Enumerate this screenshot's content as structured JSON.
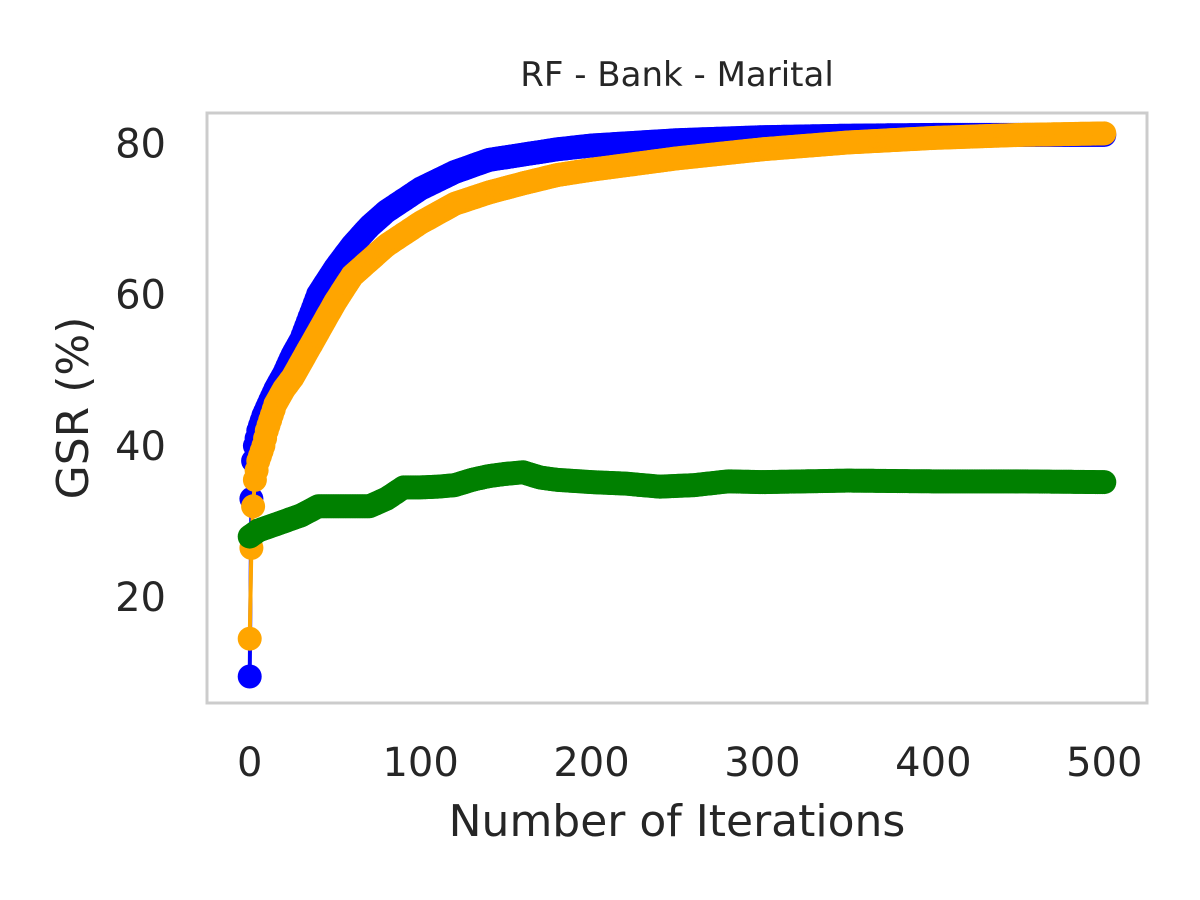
{
  "chart_data": {
    "type": "line",
    "title": "RF - Bank - Marital",
    "xlabel": "Number of Iterations",
    "ylabel": "GSR (%)",
    "xlim": [
      -25,
      525
    ],
    "ylim": [
      6,
      84
    ],
    "xticks": [
      0,
      100,
      200,
      300,
      400,
      500
    ],
    "yticks": [
      20,
      40,
      60,
      80
    ],
    "xtick_labels": [
      "0",
      "100",
      "200",
      "300",
      "400",
      "500"
    ],
    "ytick_labels": [
      "20",
      "40",
      "60",
      "80"
    ],
    "grid": false,
    "series": [
      {
        "name": "blue",
        "color": "#0000ff",
        "x": [
          0,
          1,
          2,
          3,
          5,
          8,
          10,
          15,
          20,
          25,
          30,
          40,
          50,
          60,
          70,
          80,
          90,
          100,
          120,
          140,
          160,
          180,
          200,
          250,
          300,
          350,
          400,
          450,
          500
        ],
        "y": [
          9.5,
          33,
          38,
          40,
          42,
          44,
          45,
          47.5,
          49.5,
          52,
          54,
          60,
          63.5,
          66.5,
          69,
          71,
          72.5,
          74,
          76.2,
          77.8,
          78.5,
          79.2,
          79.7,
          80.4,
          80.8,
          81,
          81.1,
          81.1,
          81.1
        ]
      },
      {
        "name": "orange",
        "color": "#ffa500",
        "x": [
          0,
          1,
          2,
          3,
          5,
          8,
          10,
          15,
          20,
          25,
          30,
          40,
          50,
          60,
          70,
          80,
          90,
          100,
          120,
          140,
          160,
          180,
          200,
          250,
          300,
          350,
          400,
          450,
          500
        ],
        "y": [
          14.5,
          26.5,
          32,
          35.5,
          38,
          40,
          42,
          45.5,
          47.5,
          49,
          51,
          55,
          59,
          62.5,
          64.5,
          66.5,
          68,
          69.5,
          72,
          73.5,
          74.7,
          75.8,
          76.5,
          78,
          79.2,
          80.1,
          80.7,
          81.1,
          81.3
        ]
      },
      {
        "name": "green",
        "color": "#008000",
        "x": [
          0,
          5,
          10,
          20,
          30,
          40,
          50,
          60,
          70,
          80,
          90,
          100,
          110,
          120,
          130,
          140,
          150,
          160,
          170,
          180,
          200,
          220,
          240,
          260,
          280,
          300,
          350,
          400,
          450,
          500
        ],
        "y": [
          28,
          28.8,
          29.2,
          30,
          30.8,
          32,
          32,
          32,
          32,
          33,
          34.5,
          34.5,
          34.6,
          34.8,
          35.5,
          36,
          36.3,
          36.5,
          35.8,
          35.5,
          35.2,
          35,
          34.6,
          34.8,
          35.3,
          35.2,
          35.4,
          35.3,
          35.3,
          35.2
        ]
      }
    ]
  }
}
